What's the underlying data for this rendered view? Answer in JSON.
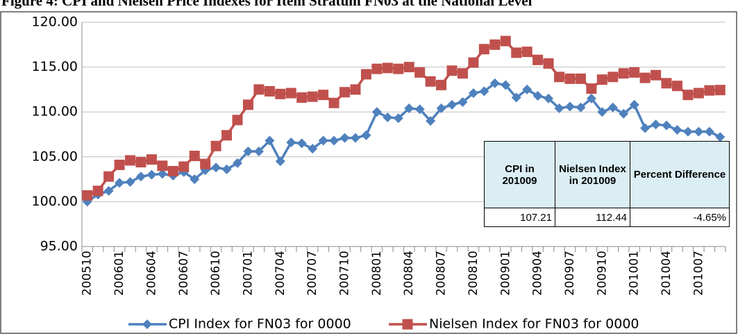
{
  "chart_data": {
    "type": "line",
    "title": "Figure 4: CPI and Nielsen Price Indexes for Item Stratum FN03 at the National Level",
    "categories": [
      "200510",
      null,
      null,
      "200601",
      null,
      null,
      "200604",
      null,
      null,
      "200607",
      null,
      null,
      "200610",
      null,
      null,
      "200701",
      null,
      null,
      "200704",
      null,
      null,
      "200707",
      null,
      null,
      "200710",
      null,
      null,
      "200801",
      null,
      null,
      "200804",
      null,
      null,
      "200807",
      null,
      null,
      "200810",
      null,
      null,
      "200901",
      null,
      null,
      "200904",
      null,
      null,
      "200907",
      null,
      null,
      "200910",
      null,
      null,
      "201001",
      null,
      null,
      "201004",
      null,
      null,
      "201007",
      null,
      null
    ],
    "series": [
      {
        "name": "CPI Index for FN03 for 0000",
        "color": "#4f81bd",
        "marker": "diamond",
        "values": [
          100.0,
          100.8,
          101.2,
          102.1,
          102.2,
          102.8,
          103.0,
          103.1,
          102.9,
          103.3,
          102.5,
          103.5,
          103.8,
          103.6,
          104.3,
          105.6,
          105.6,
          106.8,
          104.5,
          106.6,
          106.5,
          105.9,
          106.8,
          106.8,
          107.1,
          107.1,
          107.4,
          110.0,
          109.4,
          109.3,
          110.4,
          110.3,
          109.0,
          110.4,
          110.8,
          111.1,
          112.1,
          112.3,
          113.2,
          113.0,
          111.6,
          112.5,
          111.8,
          111.5,
          110.4,
          110.6,
          110.5,
          111.5,
          110.0,
          110.5,
          109.8,
          110.8,
          108.2,
          108.6,
          108.5,
          108.0,
          107.8,
          107.8,
          107.8,
          107.21
        ]
      },
      {
        "name": "Nielsen Index for FN03 for 0000",
        "color": "#c0504d",
        "marker": "square",
        "values": [
          100.7,
          101.2,
          102.8,
          104.1,
          104.6,
          104.4,
          104.7,
          104.0,
          103.4,
          103.9,
          105.1,
          104.2,
          106.2,
          107.4,
          109.1,
          110.8,
          112.5,
          112.3,
          112.0,
          112.1,
          111.6,
          111.7,
          111.9,
          111.0,
          112.2,
          112.5,
          114.2,
          114.8,
          114.9,
          114.8,
          115.0,
          114.4,
          113.4,
          113.0,
          114.6,
          114.3,
          115.5,
          117.0,
          117.5,
          117.9,
          116.6,
          116.7,
          115.8,
          115.4,
          113.9,
          113.7,
          113.7,
          112.6,
          113.6,
          113.9,
          114.3,
          114.4,
          113.8,
          114.1,
          113.2,
          112.9,
          111.9,
          112.1,
          112.4,
          112.44
        ]
      }
    ],
    "ylim": [
      95,
      120
    ],
    "yticks": [
      {
        "value": 95,
        "label": "95.00"
      },
      {
        "value": 100,
        "label": "100.00"
      },
      {
        "value": 105,
        "label": "105.00"
      },
      {
        "value": 110,
        "label": "110.00"
      },
      {
        "value": 115,
        "label": "115.00"
      },
      {
        "value": 120,
        "label": "120.00"
      }
    ],
    "grid": true,
    "legend": "bottom",
    "table": {
      "columns": [
        "CPI in 201009",
        "Nielsen Index in 201009",
        "Percent Difference"
      ],
      "rows": [
        [
          "107.21",
          "112.44",
          "-4.65%"
        ]
      ]
    }
  }
}
